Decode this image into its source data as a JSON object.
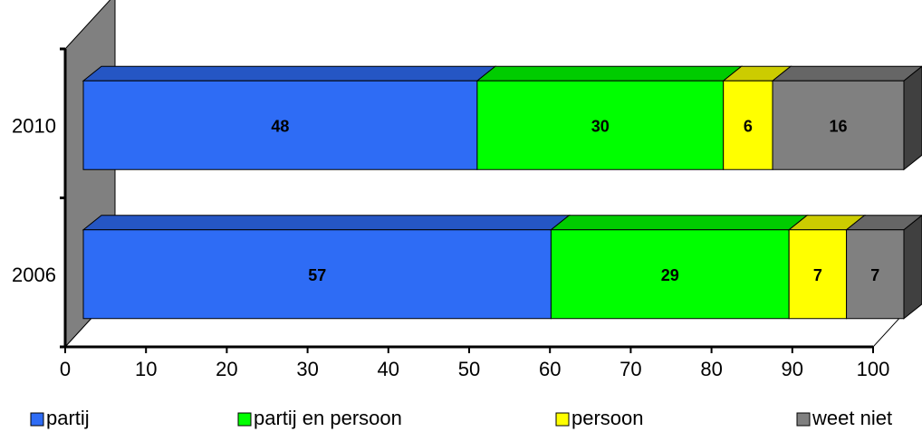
{
  "chart_data": {
    "type": "bar",
    "orientation": "horizontal",
    "stacked": true,
    "three_d": true,
    "categories": [
      "2010",
      "2006"
    ],
    "series": [
      {
        "name": "partij",
        "color": "#2e6cf5",
        "values": [
          48,
          57
        ]
      },
      {
        "name": "partij en persoon",
        "color": "#00ff00",
        "values": [
          30,
          29
        ]
      },
      {
        "name": "persoon",
        "color": "#ffff00",
        "values": [
          6,
          7
        ]
      },
      {
        "name": "weet niet",
        "color": "#808080",
        "values": [
          16,
          7
        ]
      }
    ],
    "xlim": [
      0,
      100
    ],
    "xticks": [
      0,
      10,
      20,
      30,
      40,
      50,
      60,
      70,
      80,
      90,
      100
    ],
    "grid": false,
    "legend": "bottom"
  }
}
